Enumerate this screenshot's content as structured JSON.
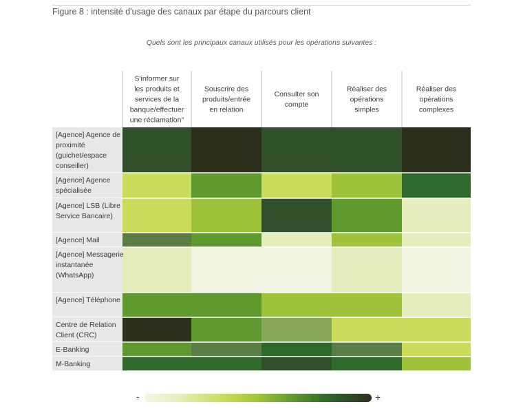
{
  "figure_title": "Figure 8 : intensité d'usage des canaux par étape du parcours client",
  "question": "Quels sont les principaux canaux utilisés pour les opérations suivantes :",
  "scale": {
    "min_label": "-",
    "max_label": "+"
  },
  "colors": {
    "1": "#f3f6e4",
    "2": "#e6edbd",
    "3": "#cbdb5c",
    "4": "#9fc43c",
    "5": "#87a85a",
    "6": "#5f9a2f",
    "7": "#5a7d45",
    "8": "#2f6a2c",
    "9": "#30502b",
    "10": "#2d2f1d",
    "row_header_bg": "#e8e8e8"
  },
  "chart_data": {
    "type": "heatmap",
    "title": "Quels sont les principaux canaux utilisés pour les opérations suivantes :",
    "columns": [
      "S'informer sur les produits et services de la banque/effectuer une réclamation\"",
      "Souscrire des produits/entrée en relation",
      "Consulter son compte",
      "Réaliser des opérations simples",
      "Réaliser des opérations complexes"
    ],
    "rows": [
      "[Agence] Agence de proximité (guichet/espace conseiller)",
      "[Agence] Agence spécialisée",
      "[Agence] LSB (Libre Service Bancaire)",
      "[Agence] Mail",
      "[Agence] Messagerie instantanée (WhatsApp)",
      "[Agence] Téléphone",
      "Centre de Relation Client (CRC)",
      "E-Banking",
      "M-Banking"
    ],
    "values": [
      [
        9,
        10,
        9,
        9,
        10
      ],
      [
        3,
        6,
        3,
        4,
        8
      ],
      [
        3,
        4,
        9,
        6,
        2
      ],
      [
        7,
        6,
        2,
        4,
        2
      ],
      [
        2,
        1,
        1,
        2,
        1
      ],
      [
        6,
        6,
        4,
        4,
        2
      ],
      [
        10,
        6,
        5,
        3,
        3
      ],
      [
        6,
        7,
        8,
        7,
        3
      ],
      [
        8,
        8,
        9,
        8,
        4
      ]
    ],
    "scale_range": [
      1,
      10
    ],
    "legend": "bottom"
  }
}
